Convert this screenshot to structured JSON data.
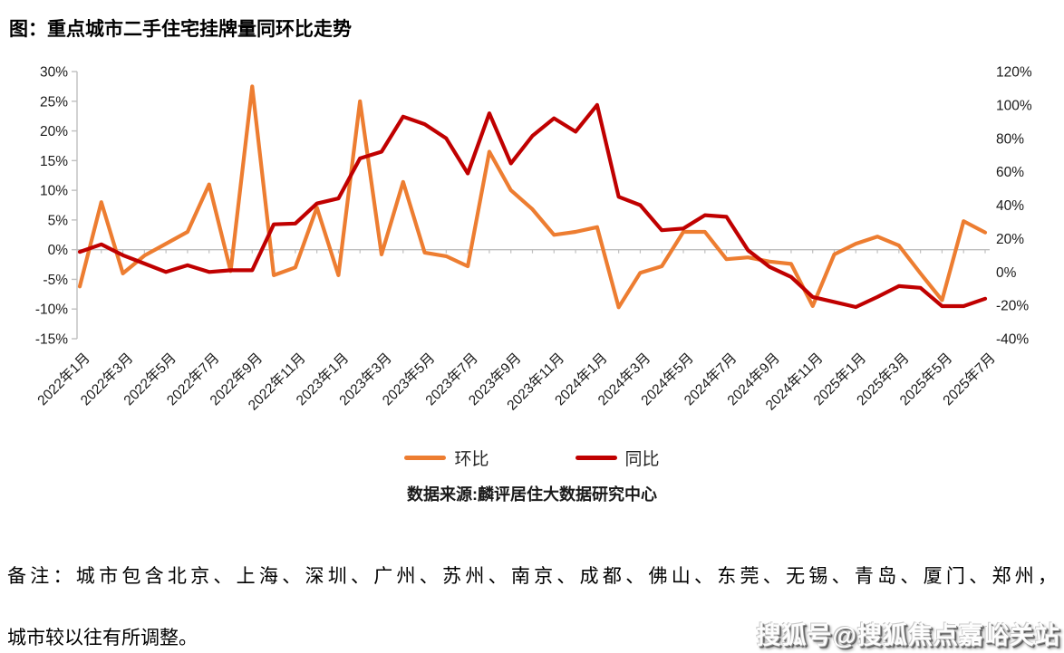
{
  "title": "图：重点城市二手住宅挂牌量同环比走势",
  "colors": {
    "mom": "#ED7D31",
    "yoy": "#C00000",
    "axis": "#BFBFBF",
    "text": "#1a1a1a"
  },
  "left_axis": {
    "labels": [
      "30%",
      "25%",
      "20%",
      "15%",
      "10%",
      "5%",
      "0%",
      "-5%",
      "-10%",
      "-15%"
    ],
    "max": 30,
    "min": -15,
    "step": 5
  },
  "right_axis": {
    "labels": [
      "120%",
      "100%",
      "80%",
      "60%",
      "40%",
      "20%",
      "0%",
      "-20%",
      "-40%"
    ],
    "max": 120,
    "min": -40,
    "step": 20
  },
  "legend": {
    "mom_label": "环比",
    "yoy_label": "同比"
  },
  "source": "数据来源:麟评居住大数据研究中心",
  "notes": {
    "line1": "备注：城市包含北京、上海、深圳、广州、苏州、南京、成都、佛山、东莞、无锡、青岛、厦门、郑州，",
    "line2": "城市较以往有所调整。"
  },
  "watermark": "搜狐号@搜狐焦点嘉峪关站",
  "chart_data": {
    "type": "line",
    "title": "重点城市二手住宅挂牌量同环比走势",
    "x": [
      "2022年1月",
      "2022年2月",
      "2022年3月",
      "2022年4月",
      "2022年5月",
      "2022年6月",
      "2022年7月",
      "2022年8月",
      "2022年9月",
      "2022年10月",
      "2022年11月",
      "2022年12月",
      "2023年1月",
      "2023年2月",
      "2023年3月",
      "2023年4月",
      "2023年5月",
      "2023年6月",
      "2023年7月",
      "2023年8月",
      "2023年9月",
      "2023年10月",
      "2023年11月",
      "2023年12月",
      "2024年1月",
      "2024年2月",
      "2024年3月",
      "2024年4月",
      "2024年5月",
      "2024年6月",
      "2024年7月",
      "2024年8月",
      "2024年9月",
      "2024年10月",
      "2024年11月",
      "2024年12月",
      "2025年1月",
      "2025年2月",
      "2025年3月",
      "2025年4月",
      "2025年5月",
      "2025年6月",
      "2025年7月"
    ],
    "x_tick_labels": [
      "2022年1月",
      "2022年3月",
      "2022年5月",
      "2022年7月",
      "2022年9月",
      "2022年11月",
      "2023年1月",
      "2023年3月",
      "2023年5月",
      "2023年7月",
      "2023年9月",
      "2023年11月",
      "2024年1月",
      "2024年3月",
      "2024年5月",
      "2024年7月",
      "2024年9月",
      "2024年11月",
      "2025年1月",
      "2025年3月",
      "2025年5月",
      "2025年7月"
    ],
    "series": [
      {
        "name": "环比",
        "axis": "left",
        "color": "#ED7D31",
        "values": [
          -6.2,
          8,
          -4,
          -1,
          1,
          3,
          11,
          -3.6,
          27.5,
          -4.3,
          -3,
          7.1,
          -4.3,
          25,
          -0.8,
          11.4,
          -0.5,
          -1.1,
          -2.8,
          16.5,
          10,
          6.8,
          2.5,
          3,
          3.8,
          -9.7,
          -3.9,
          -2.8,
          3,
          3,
          -1.6,
          -1.3,
          -2,
          -2.4,
          -9.5,
          -0.8,
          1,
          2.2,
          0.7,
          -4,
          -8.5,
          4.8,
          2.9
        ]
      },
      {
        "name": "同比",
        "axis": "right",
        "color": "#C00000",
        "values": [
          12,
          16.5,
          10,
          5,
          0,
          4,
          0,
          1,
          1,
          28.5,
          29,
          41,
          44,
          68,
          72,
          93,
          88.5,
          80,
          59,
          95,
          65,
          81.5,
          92,
          84,
          100,
          45,
          40,
          25,
          26,
          34,
          33,
          13,
          3,
          -3,
          -15,
          -18,
          -21,
          -15,
          -8.5,
          -9.5,
          -20.5,
          -20.5,
          -16
        ]
      }
    ],
    "left_ylim": [
      -15,
      30
    ],
    "right_ylim": [
      -40,
      120
    ],
    "grid": false,
    "legend_position": "bottom"
  }
}
